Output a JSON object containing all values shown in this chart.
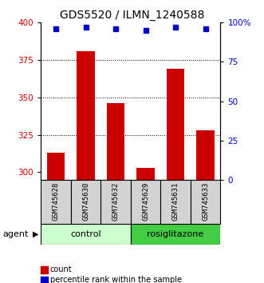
{
  "title": "GDS5520 / ILMN_1240588",
  "samples": [
    "GSM745628",
    "GSM745630",
    "GSM745632",
    "GSM745629",
    "GSM745631",
    "GSM745633"
  ],
  "counts": [
    313,
    381,
    346,
    303,
    369,
    328
  ],
  "percentiles": [
    96,
    97,
    96,
    95,
    97,
    96
  ],
  "ylim_left": [
    295,
    400
  ],
  "ylim_right": [
    0,
    100
  ],
  "yticks_left": [
    300,
    325,
    350,
    375,
    400
  ],
  "yticks_right": [
    0,
    25,
    50,
    75,
    100
  ],
  "ytick_right_labels": [
    "0",
    "25",
    "50",
    "75",
    "100%"
  ],
  "bar_color": "#cc0000",
  "dot_color": "#0000cc",
  "control_label": "control",
  "rosiglitazone_label": "rosiglitazone",
  "agent_label": "agent",
  "legend_count": "count",
  "legend_percentile": "percentile rank within the sample",
  "control_color": "#ccffcc",
  "rosiglitazone_color": "#44cc44",
  "title_fontsize": 10,
  "tick_fontsize": 7.5,
  "sample_fontsize": 6.5,
  "agent_fontsize": 8,
  "legend_fontsize": 7
}
